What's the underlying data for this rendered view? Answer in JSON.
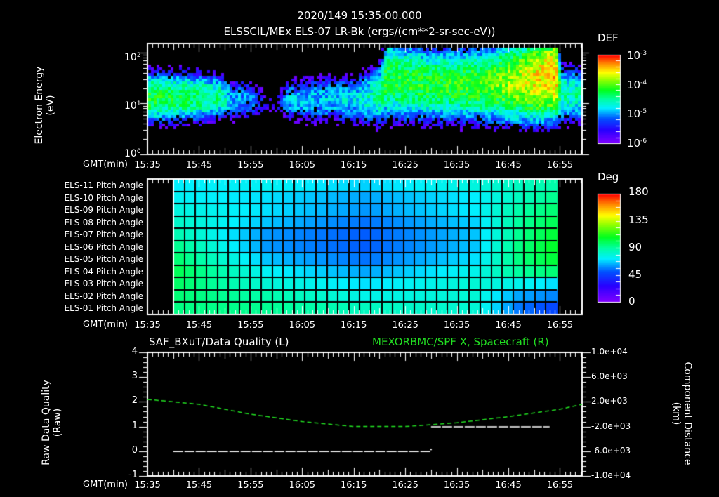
{
  "header": {
    "datetime": "2020/149 15:35:00.000",
    "subtitle": "ELSSCIL/MEx ELS-07 LR-Bk  (ergs/(cm**2-sr-sec-eV))"
  },
  "panels": {
    "spectrogram": {
      "ylabel_line1": "Electron Energy",
      "ylabel_line2": "(eV)",
      "colorbar_title": "DEF",
      "colorbar_labels": [
        {
          "base": "10",
          "exp": "-3"
        },
        {
          "base": "10",
          "exp": "-4"
        },
        {
          "base": "10",
          "exp": "-5"
        },
        {
          "base": "10",
          "exp": "-6"
        }
      ],
      "ytick_labels": [
        {
          "base": "10",
          "exp": "2"
        },
        {
          "base": "10",
          "exp": "1"
        },
        {
          "base": "10",
          "exp": "0"
        }
      ]
    },
    "pitch": {
      "row_labels": [
        "ELS-11 Pitch Angle",
        "ELS-10 Pitch Angle",
        "ELS-09 Pitch Angle",
        "ELS-08 Pitch Angle",
        "ELS-07 Pitch Angle",
        "ELS-06 Pitch Angle",
        "ELS-05 Pitch Angle",
        "ELS-04 Pitch Angle",
        "ELS-03 Pitch Angle",
        "ELS-02 Pitch Angle",
        "ELS-01 Pitch Angle"
      ],
      "colorbar_title": "Deg",
      "colorbar_labels": [
        "180",
        "135",
        "90",
        "45",
        "0"
      ]
    },
    "lineplot": {
      "title_left": "SAF_BXuT/Data Quality (L)",
      "title_right": "MEXORBMC/SPF X, Spacecraft (R)",
      "ylabel_left_line1": "Raw Data Quality",
      "ylabel_left_line2": "(Raw)",
      "ylabel_right_line1": "Component Distance",
      "ylabel_right_line2": "(km)",
      "yticks_left": [
        "4",
        "3",
        "2",
        "1",
        "0",
        "-1"
      ],
      "yticks_right": [
        "1.0e+04",
        "6.0e+03",
        "2.0e+03",
        "-2.0e+03",
        "-6.0e+03",
        "-1.0e+04"
      ]
    }
  },
  "xaxis": {
    "label": "GMT(min)",
    "ticks": [
      "15:35",
      "15:45",
      "15:55",
      "16:05",
      "16:15",
      "16:25",
      "16:35",
      "16:45",
      "16:55"
    ]
  },
  "colors": {
    "background": "#000000",
    "axis": "#ffffff",
    "right_series": "#22e022",
    "left_series": "#ffffff"
  },
  "chart_data": [
    {
      "type": "heatmap",
      "title": "ELSSCIL/MEx ELS-07 LR-Bk (ergs/(cm**2-sr-sec-eV))",
      "xlabel": "GMT(min)",
      "ylabel": "Electron Energy (eV)",
      "yscale": "log",
      "ylim": [
        1,
        150
      ],
      "x_range": [
        "15:35",
        "17:00"
      ],
      "colorbar": {
        "label": "DEF",
        "scale": "log",
        "range": [
          1e-06,
          0.001
        ]
      },
      "band_profile": [
        {
          "t_min": 0,
          "center_log_eV": 1.15,
          "peak_log_def": -4.2,
          "width": 0.35
        },
        {
          "t_min": 5,
          "center_log_eV": 1.15,
          "peak_log_def": -4.3,
          "width": 0.35
        },
        {
          "t_min": 10,
          "center_log_eV": 1.15,
          "peak_log_def": -4.4,
          "width": 0.35
        },
        {
          "t_min": 14,
          "center_log_eV": 1.15,
          "peak_log_def": -4.5,
          "width": 0.3
        },
        {
          "t_min": 16,
          "center_log_eV": 1.1,
          "peak_log_def": -4.9,
          "width": 0.3
        },
        {
          "t_min": 20,
          "center_log_eV": 1.1,
          "peak_log_def": -5.1,
          "width": 0.3
        },
        {
          "t_min": 24,
          "center_log_eV": 1.0,
          "peak_log_def": -5.9,
          "width": 0.2
        },
        {
          "t_min": 27,
          "center_log_eV": 1.1,
          "peak_log_def": -4.9,
          "width": 0.3
        },
        {
          "t_min": 32,
          "center_log_eV": 1.1,
          "peak_log_def": -4.9,
          "width": 0.35
        },
        {
          "t_min": 40,
          "center_log_eV": 1.1,
          "peak_log_def": -4.8,
          "width": 0.35
        },
        {
          "t_min": 45,
          "center_log_eV": 1.2,
          "peak_log_def": -4.5,
          "width": 0.45
        },
        {
          "t_min": 46,
          "center_log_eV": 1.5,
          "peak_log_def": -4.2,
          "width": 0.55
        },
        {
          "t_min": 55,
          "center_log_eV": 1.4,
          "peak_log_def": -4.2,
          "width": 0.5
        },
        {
          "t_min": 65,
          "center_log_eV": 1.4,
          "peak_log_def": -4.1,
          "width": 0.5
        },
        {
          "t_min": 75,
          "center_log_eV": 1.5,
          "peak_log_def": -3.6,
          "width": 0.55
        },
        {
          "t_min": 79,
          "center_log_eV": 1.6,
          "peak_log_def": -3.4,
          "width": 0.55
        },
        {
          "t_min": 80,
          "center_log_eV": 1.2,
          "peak_log_def": -4.5,
          "width": 0.4
        },
        {
          "t_min": 85,
          "center_log_eV": 1.2,
          "peak_log_def": -4.6,
          "width": 0.4
        }
      ]
    },
    {
      "type": "heatmap",
      "title": "Pitch Angle",
      "xlabel": "GMT(min)",
      "rows": [
        "ELS-11",
        "ELS-10",
        "ELS-09",
        "ELS-08",
        "ELS-07",
        "ELS-06",
        "ELS-05",
        "ELS-04",
        "ELS-03",
        "ELS-02",
        "ELS-01"
      ],
      "colorbar": {
        "label": "Deg",
        "range": [
          0,
          180
        ]
      },
      "x_start": "15:40",
      "x_end": "16:54",
      "n_columns": 35,
      "column_anchors": [
        0,
        8,
        17,
        27,
        31,
        34
      ],
      "values_by_anchor": [
        [
          72,
          74,
          68,
          78,
          84,
          88
        ],
        [
          74,
          70,
          62,
          72,
          84,
          92
        ],
        [
          78,
          70,
          60,
          72,
          88,
          96
        ],
        [
          82,
          66,
          55,
          68,
          90,
          100
        ],
        [
          86,
          60,
          52,
          66,
          92,
          104
        ],
        [
          92,
          60,
          52,
          66,
          94,
          106
        ],
        [
          96,
          66,
          55,
          70,
          94,
          104
        ],
        [
          100,
          74,
          62,
          76,
          90,
          96
        ],
        [
          98,
          80,
          70,
          80,
          76,
          70
        ],
        [
          96,
          88,
          76,
          80,
          62,
          58
        ],
        [
          94,
          92,
          84,
          80,
          56,
          48
        ]
      ]
    },
    {
      "type": "line",
      "title": "SAF_BXuT/Data Quality (L)",
      "ylabel": "Raw Data Quality (Raw)",
      "ylim": [
        -1,
        4
      ],
      "series": [
        {
          "name": "Data Quality",
          "axis": "left",
          "style": "solid",
          "color": "#ffffff",
          "segments": [
            {
              "x": [
                "15:40",
                "16:30"
              ],
              "y": 0
            },
            {
              "x": [
                "16:30",
                "16:53"
              ],
              "y": 1
            }
          ]
        }
      ]
    },
    {
      "type": "line",
      "title": "MEXORBMC/SPF X, Spacecraft (R)",
      "ylabel": "Component Distance (km)",
      "ylim": [
        -10000,
        10000
      ],
      "series": [
        {
          "name": "SPF X",
          "axis": "right",
          "style": "dashed",
          "color": "#22e022",
          "x": [
            "15:35",
            "15:45",
            "15:55",
            "16:05",
            "16:15",
            "16:25",
            "16:35",
            "16:45",
            "16:55",
            "17:00"
          ],
          "y": [
            2400,
            1600,
            0,
            -1200,
            -2000,
            -2000,
            -1400,
            -400,
            800,
            1600
          ]
        }
      ]
    }
  ]
}
